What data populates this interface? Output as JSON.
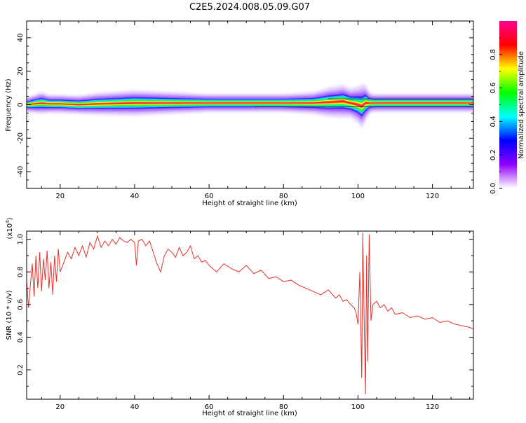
{
  "title": "C2E5.2024.008.05.09.G07",
  "chart_data": [
    {
      "type": "heatmap",
      "xlabel": "Height of straight line (km)",
      "ylabel": "Frequency (Hz)",
      "xlim": [
        11,
        131
      ],
      "ylim": [
        -50,
        50
      ],
      "xticks": [
        20,
        40,
        60,
        80,
        100,
        120
      ],
      "yticks": [
        -40,
        -20,
        0,
        20,
        40
      ],
      "ridge": {
        "x": [
          11,
          13,
          15,
          17,
          20,
          25,
          30,
          40,
          50,
          60,
          70,
          80,
          88,
          92,
          96,
          98,
          100,
          101,
          102,
          103,
          104,
          106,
          108,
          110,
          115,
          120,
          125,
          131
        ],
        "y": [
          0,
          0.5,
          1,
          0.5,
          0.5,
          0,
          0.5,
          1,
          1,
          1,
          1,
          1,
          1,
          1.5,
          2,
          1,
          0,
          -1,
          1,
          1,
          1,
          1,
          1,
          1,
          1,
          1,
          1,
          1
        ],
        "width": [
          2,
          2.5,
          3,
          2.5,
          2.5,
          2.5,
          3,
          3.5,
          3,
          2.5,
          2.5,
          2.5,
          3,
          4,
          4.5,
          4,
          5,
          6,
          5,
          3,
          2.5,
          2.5,
          2.5,
          2.5,
          2.5,
          2.5,
          2.5,
          2.5
        ]
      },
      "colorbar": {
        "label": "Normalized spectral amplitude",
        "range": [
          0,
          1
        ],
        "ticks": [
          0.0,
          0.2,
          0.4,
          0.6,
          0.8
        ],
        "colors": [
          "#ffffff",
          "#8f00ff",
          "#0000ff",
          "#00ffff",
          "#00ff00",
          "#ffff00",
          "#ff0000",
          "#ff0090"
        ]
      }
    },
    {
      "type": "line",
      "xlabel": "Height of straight line (km)",
      "ylabel": "SNR (10 * v/v)",
      "yscale_label": "(x10",
      "yscale_exp": "4",
      "yscale_close": ")",
      "xlim": [
        11,
        131
      ],
      "ylim": [
        0.02,
        1.05
      ],
      "xticks": [
        20,
        40,
        60,
        80,
        100,
        120
      ],
      "yticks": [
        0.2,
        0.4,
        0.6,
        0.8,
        1.0
      ],
      "color": "#e8302a",
      "series": [
        {
          "x": [
            11,
            11.5,
            12,
            12.5,
            13,
            13.5,
            14,
            14.5,
            15,
            15.5,
            16,
            16.5,
            17,
            17.5,
            18,
            18.5,
            19,
            19.5,
            20,
            21,
            22,
            23,
            24,
            25,
            26,
            27,
            28,
            29,
            30,
            31,
            32,
            33,
            34,
            35,
            36,
            37,
            38,
            39,
            40,
            40.5,
            41,
            42,
            43,
            44,
            45,
            46,
            47,
            48,
            49,
            50,
            51,
            52,
            53,
            54,
            55,
            56,
            57,
            58,
            59,
            60,
            62,
            64,
            66,
            68,
            70,
            72,
            74,
            76,
            78,
            80,
            82,
            84,
            86,
            88,
            90,
            92,
            94,
            95,
            96,
            97,
            98,
            99,
            99.5,
            100,
            100.5,
            101,
            101.3,
            101.6,
            102,
            102.3,
            102.6,
            103,
            103.5,
            104,
            105,
            106,
            107,
            108,
            109,
            110,
            112,
            114,
            116,
            118,
            120,
            122,
            124,
            126,
            128,
            130,
            131
          ],
          "y": [
            0.75,
            0.58,
            0.72,
            0.85,
            0.65,
            0.9,
            0.7,
            0.92,
            0.68,
            0.88,
            0.75,
            0.93,
            0.7,
            0.86,
            0.66,
            0.9,
            0.74,
            0.94,
            0.8,
            0.86,
            0.92,
            0.88,
            0.95,
            0.9,
            0.96,
            0.89,
            0.98,
            0.94,
            1.02,
            0.95,
            0.99,
            0.96,
            1.0,
            0.97,
            1.01,
            0.99,
            0.98,
            1.0,
            0.98,
            0.84,
            0.99,
            1.0,
            0.96,
            0.99,
            0.92,
            0.85,
            0.8,
            0.9,
            0.94,
            0.92,
            0.89,
            0.95,
            0.9,
            0.92,
            0.96,
            0.88,
            0.9,
            0.86,
            0.87,
            0.84,
            0.8,
            0.85,
            0.82,
            0.8,
            0.84,
            0.79,
            0.81,
            0.76,
            0.77,
            0.74,
            0.75,
            0.72,
            0.7,
            0.68,
            0.66,
            0.69,
            0.64,
            0.66,
            0.62,
            0.63,
            0.6,
            0.58,
            0.55,
            0.48,
            0.8,
            0.15,
            1.04,
            0.6,
            0.05,
            0.9,
            0.25,
            1.03,
            0.5,
            0.6,
            0.62,
            0.58,
            0.6,
            0.56,
            0.58,
            0.54,
            0.55,
            0.52,
            0.53,
            0.51,
            0.52,
            0.49,
            0.5,
            0.48,
            0.47,
            0.46,
            0.45
          ]
        }
      ]
    }
  ]
}
